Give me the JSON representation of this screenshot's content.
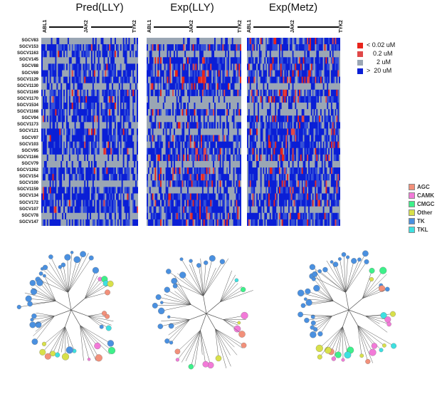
{
  "panels": [
    {
      "title": "Pred(LLY)",
      "ticks": [
        "ABL1",
        "JAK2",
        "TYK2"
      ]
    },
    {
      "title": "Exp(LLY)",
      "ticks": [
        "ABL1",
        "JAK2",
        "TYK2"
      ]
    },
    {
      "title": "Exp(Metz)",
      "ticks": [
        "ABL1",
        "JAK2",
        "TYK2"
      ]
    }
  ],
  "rows": [
    "SGCV83",
    "SGCV153",
    "SGCV1163",
    "SGCV145",
    "SGCV88",
    "SGCV69",
    "SGCV1129",
    "SGCV1130",
    "SGCV1169",
    "SGCV1170",
    "SGCV1534",
    "SGCV1168",
    "SGCV94",
    "SGCV1173",
    "SGCV121",
    "SGCV97",
    "SGCV103",
    "SGCV95",
    "SGCV1166",
    "SGCV79",
    "SGCV1262",
    "SGCV154",
    "SGCV100",
    "SGCV1159",
    "SGCV134",
    "SGCV172",
    "SGCV107",
    "SGCV78",
    "SGCV147"
  ],
  "value_legend": [
    {
      "sym": "<",
      "label": "0.02 uM",
      "color": "#e8241c"
    },
    {
      "sym": "",
      "label": "0.2 uM",
      "color": "#e04848"
    },
    {
      "sym": "",
      "label": "2 uM",
      "color": "#9aa6b4"
    },
    {
      "sym": ">",
      "label": "20 uM",
      "color": "#0a1fd6"
    }
  ],
  "family_legend": [
    {
      "label": "AGC",
      "color": "#f2907a"
    },
    {
      "label": "CAMK",
      "color": "#f27ad8"
    },
    {
      "label": "CMGC",
      "color": "#3ef08a"
    },
    {
      "label": "Other",
      "color": "#d8e04a"
    },
    {
      "label": "TK",
      "color": "#4a90e0"
    },
    {
      "label": "TKL",
      "color": "#3ee0e0"
    }
  ]
}
